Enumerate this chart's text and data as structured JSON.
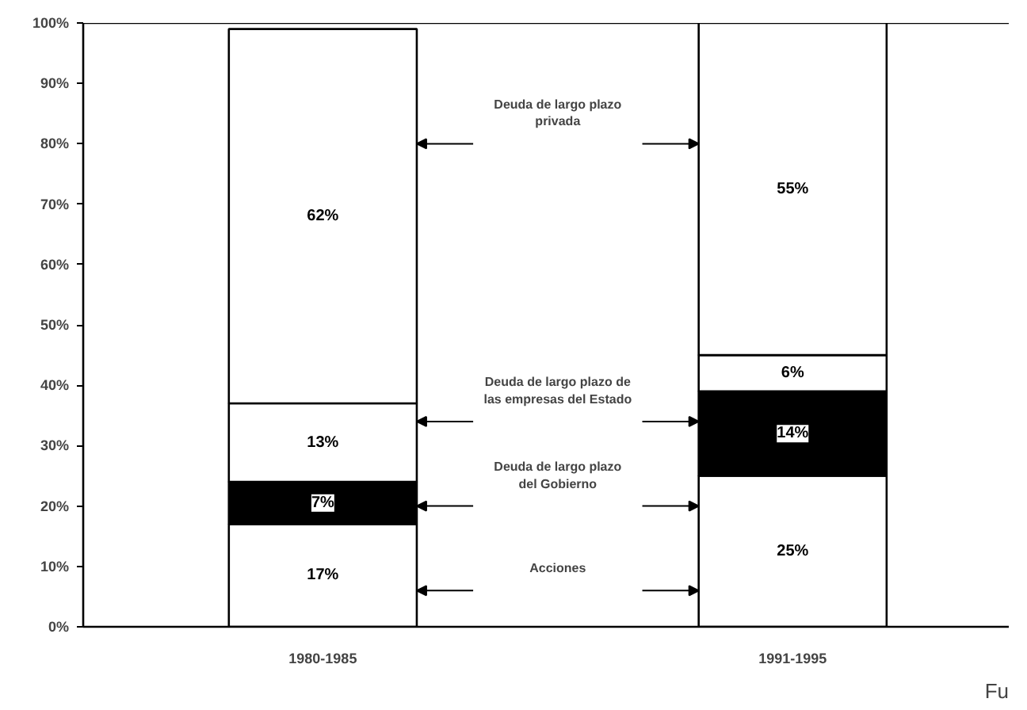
{
  "chart_data": {
    "type": "bar",
    "stacked": true,
    "categories": [
      "1980-1985",
      "1991-1995"
    ],
    "series": [
      {
        "color": "#ffffff",
        "values": [
          17,
          25
        ],
        "value_labels": [
          "17%",
          "25%"
        ]
      },
      {
        "color": "#000000",
        "values": [
          7,
          14
        ],
        "value_labels": [
          "7%",
          "14%"
        ]
      },
      {
        "color": "#ffffff",
        "values": [
          13,
          6
        ],
        "value_labels": [
          "13%",
          "6%"
        ]
      },
      {
        "color": "#ffffff",
        "values": [
          62,
          55
        ],
        "value_labels": [
          "62%",
          "55%"
        ]
      }
    ],
    "ylim": [
      0,
      100
    ],
    "yticks": [
      {
        "value": 0,
        "label": "0%"
      },
      {
        "value": 10,
        "label": "10%"
      },
      {
        "value": 20,
        "label": "20%"
      },
      {
        "value": 30,
        "label": "30%"
      },
      {
        "value": 40,
        "label": "40%"
      },
      {
        "value": 50,
        "label": "50%"
      },
      {
        "value": 60,
        "label": "60%"
      },
      {
        "value": 70,
        "label": "70%"
      },
      {
        "value": 80,
        "label": "80%"
      },
      {
        "value": 90,
        "label": "90%"
      },
      {
        "value": 100,
        "label": "100%"
      }
    ],
    "grid": false,
    "annotations": [
      "Deuda de largo plazo privada",
      "Deuda de largo plazo de las empresas del Estado",
      "Deuda de largo plazo del Gobierno",
      "Acciones",
      "Fu"
    ]
  }
}
